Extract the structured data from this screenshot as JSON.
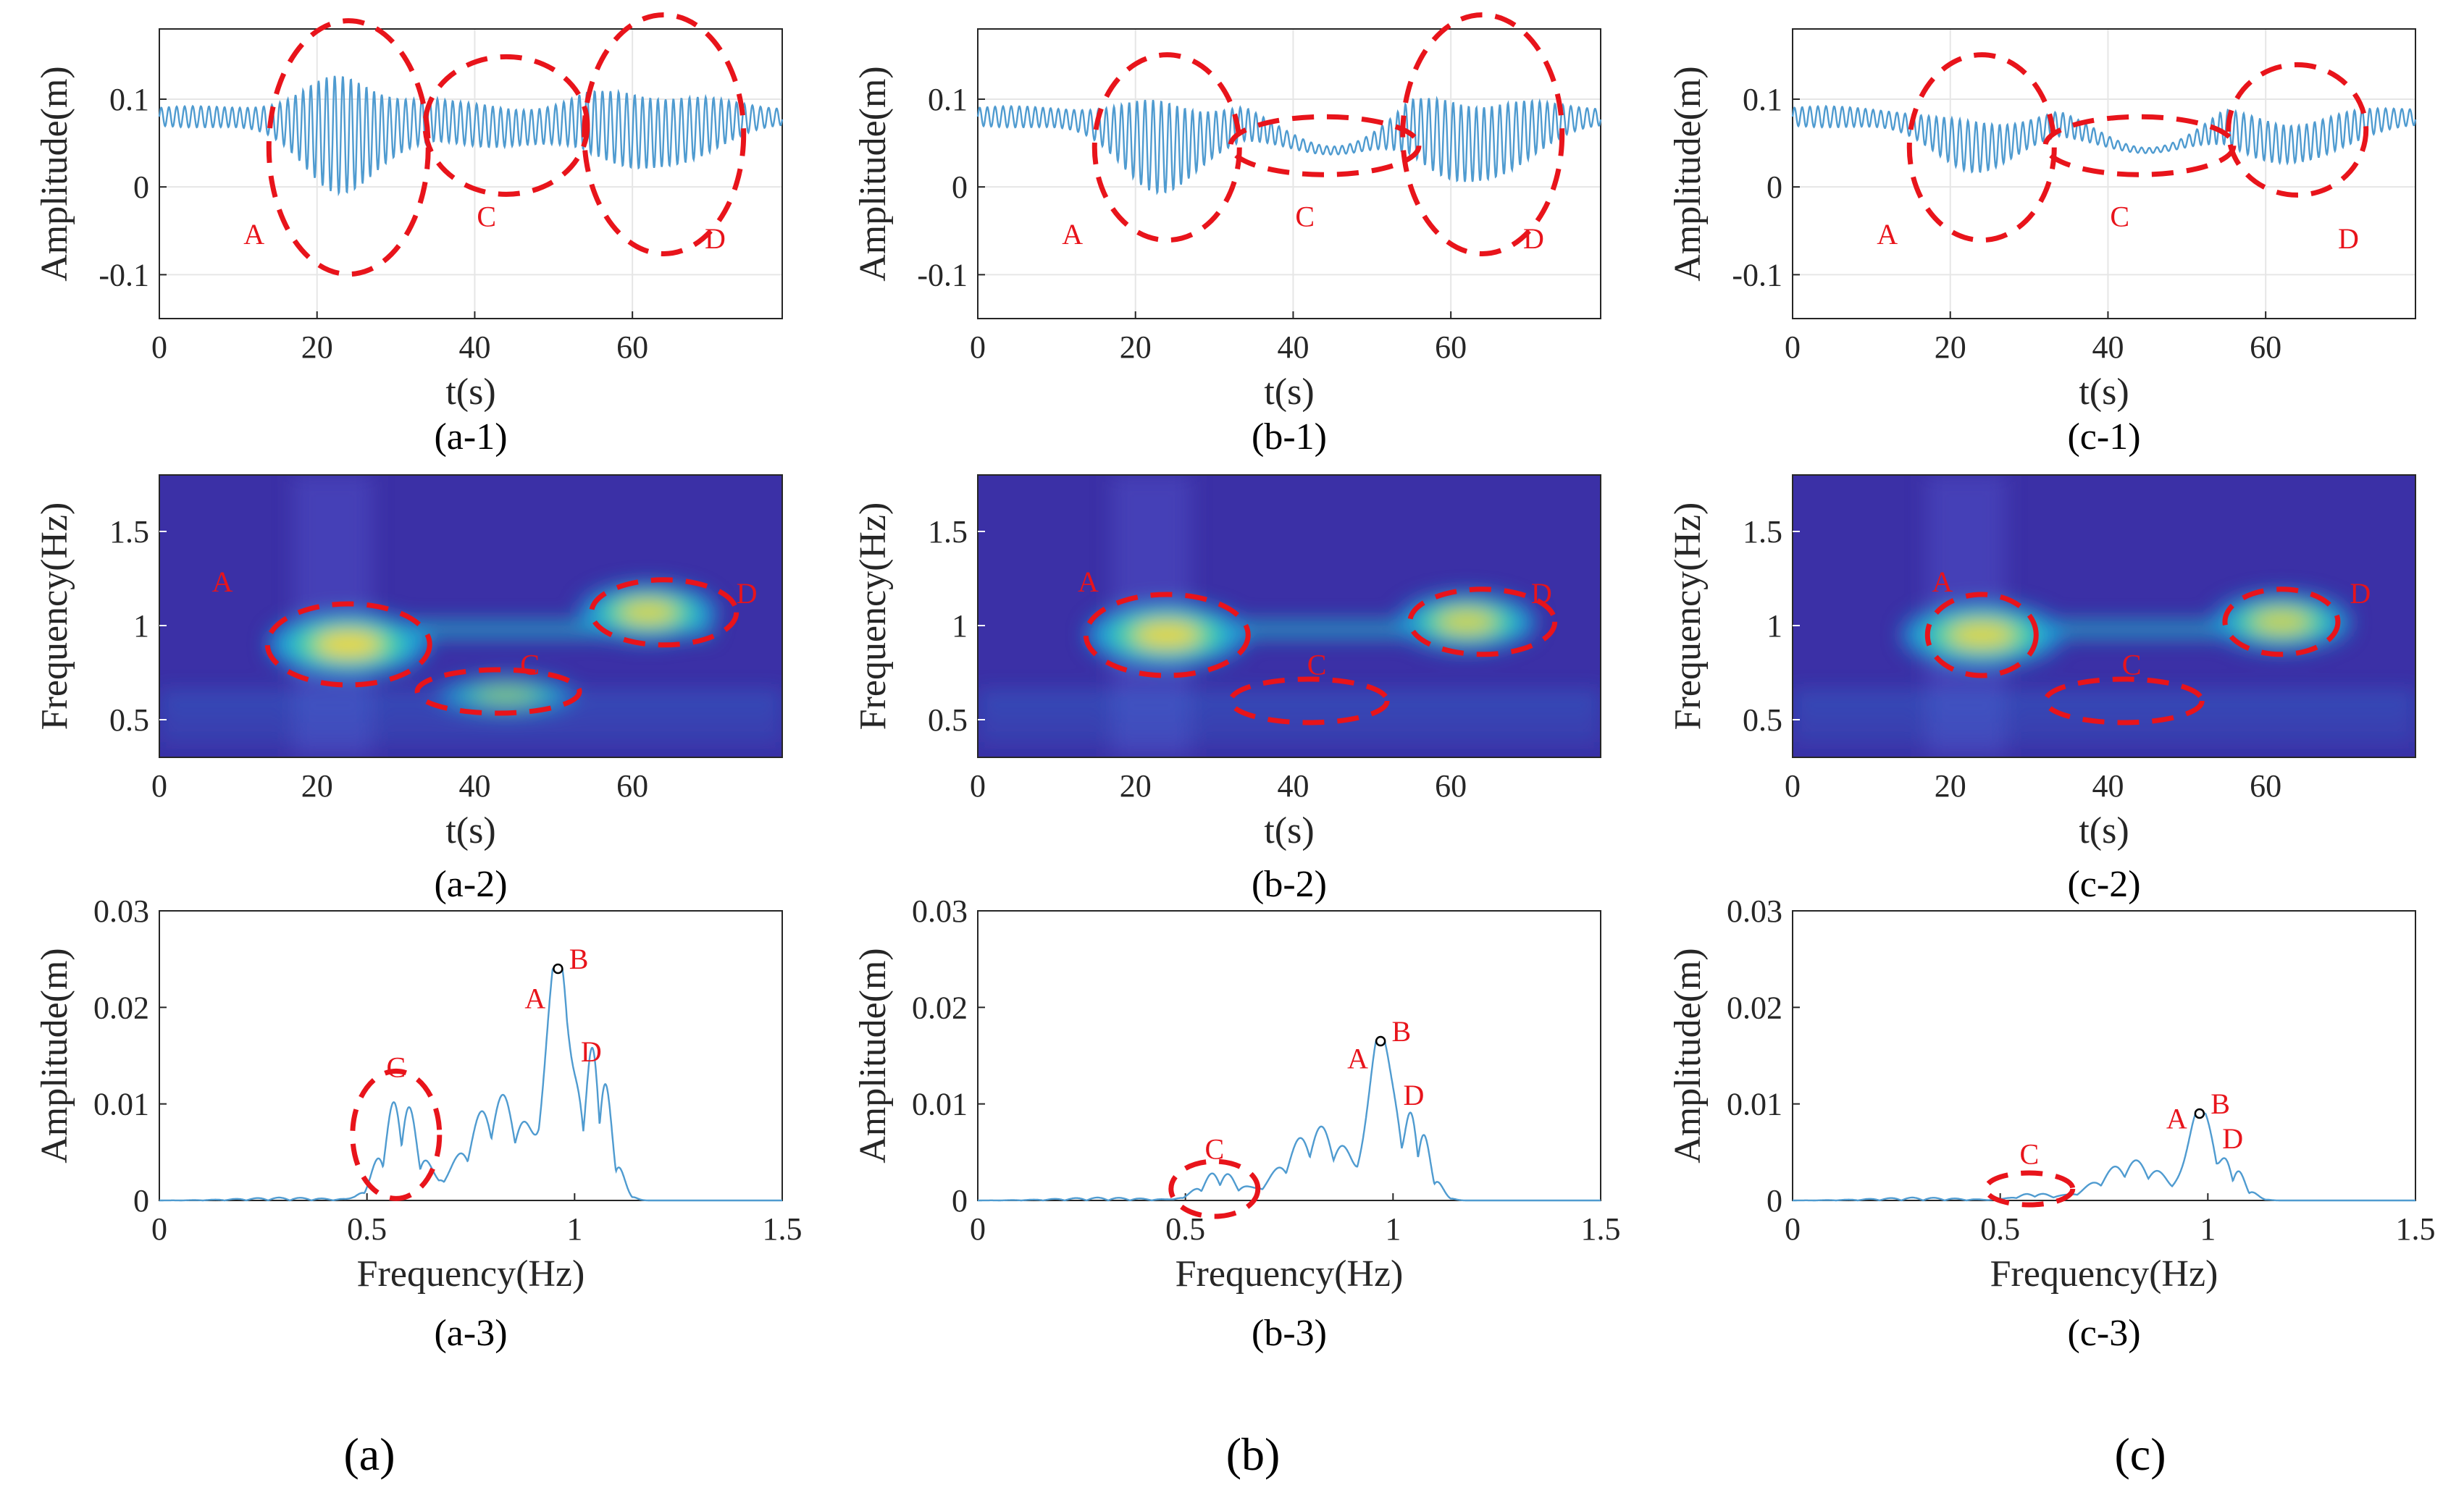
{
  "colors": {
    "signal": "#4f9bd0",
    "annotation": "#e8141b",
    "axis": "#262626",
    "grid": "#e6e6e6",
    "spectrogram_bg": "#3b30a6",
    "peak_marker": "#000000"
  },
  "column_labels": [
    "(a)",
    "(b)",
    "(c)"
  ],
  "columns": [
    {
      "id": "a",
      "time": {
        "caption": "(a-1)",
        "burst_amp": [
          0.07,
          0.028,
          0.055
        ]
      },
      "spectrogram": {
        "caption": "(a-2)",
        "blob_intensity": [
          0.95,
          0.5,
          0.8
        ]
      },
      "spectrum": {
        "caption": "(a-3)",
        "peak": {
          "f": 0.96,
          "amp": 0.024
        },
        "c_amp": 0.011,
        "d_amp": 0.016,
        "scale": 1.0
      }
    },
    {
      "id": "b",
      "time": {
        "caption": "(b-1)",
        "burst_amp": [
          0.055,
          0.006,
          0.06
        ]
      },
      "spectrogram": {
        "caption": "(b-2)",
        "blob_intensity": [
          0.9,
          0.1,
          0.75
        ]
      },
      "spectrum": {
        "caption": "(b-3)",
        "peak": {
          "f": 0.97,
          "amp": 0.0165
        },
        "c_amp": 0.003,
        "d_amp": 0.009,
        "scale": 0.7
      }
    },
    {
      "id": "c",
      "time": {
        "caption": "(c-1)",
        "burst_amp": [
          0.03,
          0.004,
          0.03
        ]
      },
      "spectrogram": {
        "caption": "(c-2)",
        "blob_intensity": [
          0.85,
          0.05,
          0.7
        ]
      },
      "spectrum": {
        "caption": "(c-3)",
        "peak": {
          "f": 0.98,
          "amp": 0.009
        },
        "c_amp": 0.0007,
        "d_amp": 0.004,
        "scale": 0.38
      }
    }
  ],
  "chart_data": [
    {
      "type": "line",
      "name": "time-history",
      "xlabel": "t(s)",
      "ylabel": "Amplitude(m)",
      "xlim": [
        0,
        79
      ],
      "ylim": [
        -0.15,
        0.18
      ],
      "xticks": [
        0,
        20,
        40,
        60
      ],
      "yticks": [
        -0.1,
        0,
        0.1
      ],
      "xtick_labels": [
        "0",
        "20",
        "40",
        "60"
      ],
      "ytick_labels": [
        "-0.1",
        "0",
        "0.1"
      ],
      "annotations": [
        "A",
        "C",
        "D"
      ]
    },
    {
      "type": "heatmap",
      "name": "time-frequency",
      "xlabel": "t(s)",
      "ylabel": "Frequency(Hz)",
      "xlim": [
        0,
        79
      ],
      "ylim": [
        0.3,
        1.8
      ],
      "xticks": [
        0,
        20,
        40,
        60
      ],
      "yticks": [
        0.5,
        1,
        1.5
      ],
      "xtick_labels": [
        "0",
        "20",
        "40",
        "60"
      ],
      "ytick_labels": [
        "0.5",
        "1",
        "1.5"
      ],
      "annotations": [
        "A",
        "C",
        "D"
      ]
    },
    {
      "type": "line",
      "name": "frequency-spectrum",
      "xlabel": "Frequency(Hz)",
      "ylabel": "Amplitude(m)",
      "xlim": [
        0,
        1.5
      ],
      "ylim": [
        0,
        0.03
      ],
      "xticks": [
        0,
        0.5,
        1,
        1.5
      ],
      "yticks": [
        0,
        0.01,
        0.02,
        0.03
      ],
      "xtick_labels": [
        "0",
        "0.5",
        "1",
        "1.5"
      ],
      "ytick_labels": [
        "0",
        "0.01",
        "0.02",
        "0.03"
      ],
      "annotations": [
        "A",
        "B",
        "C",
        "D"
      ]
    }
  ]
}
